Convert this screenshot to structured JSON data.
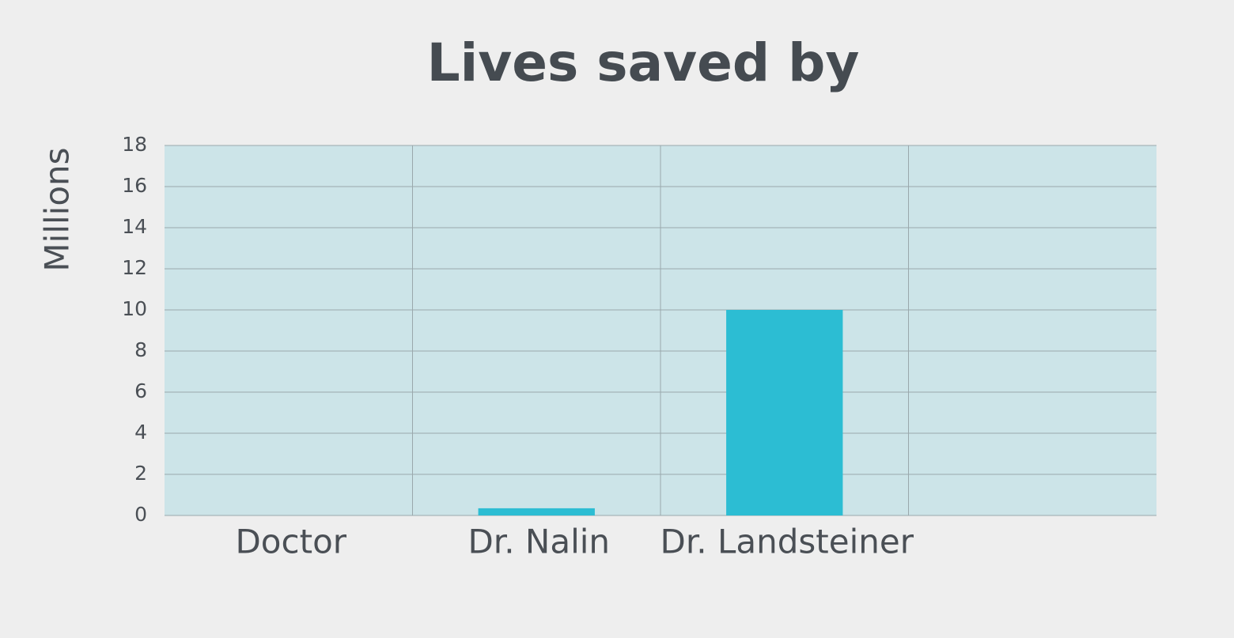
{
  "chart_data": {
    "type": "bar",
    "title": "Lives saved by",
    "y_label": "Millions",
    "categories": [
      "Doctor",
      "Dr. Nalin",
      "Dr. Landsteiner",
      null
    ],
    "values": [
      0,
      0.35,
      10,
      null
    ],
    "color": "#2cbdd3",
    "ylim": [
      0,
      18
    ],
    "yticks": [
      0,
      2,
      4,
      6,
      8,
      10,
      12,
      14,
      16,
      18
    ],
    "grid": true
  }
}
